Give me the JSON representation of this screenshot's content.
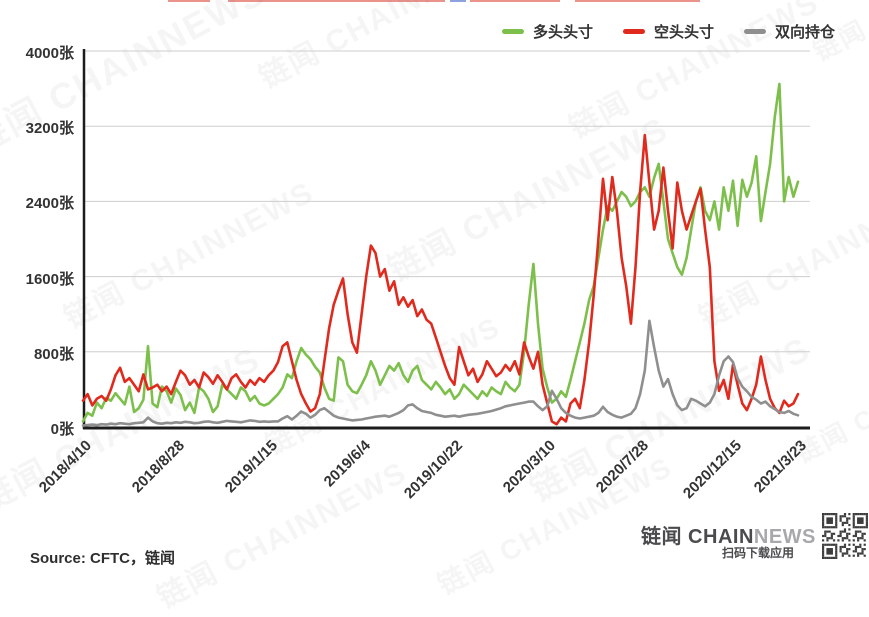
{
  "watermark": {
    "text": "链闻 CHAINNEWS"
  },
  "cutoff_title": {
    "red": "#d93a2b",
    "blue": "#2f55c9"
  },
  "legend": [
    {
      "label": "多头头寸",
      "color": "#7dbf4b"
    },
    {
      "label": "空头头寸",
      "color": "#e02a1e"
    },
    {
      "label": "双向持仓",
      "color": "#8f8f8f"
    }
  ],
  "footer": {
    "source": "Source: CFTC，链闻",
    "brand_primary": "链闻 CHAIN",
    "brand_secondary": "NEWS",
    "qr_caption": "扫码下载应用"
  },
  "chart_data": {
    "type": "line",
    "title": "",
    "xlabel": "",
    "ylabel": "",
    "unit": "张",
    "grid": true,
    "legend_position": "top-right",
    "ylim": [
      0,
      4000
    ],
    "y_ticks": [
      {
        "value": 0,
        "label": "0张"
      },
      {
        "value": 800,
        "label": "800张"
      },
      {
        "value": 1600,
        "label": "1600张"
      },
      {
        "value": 2400,
        "label": "2400张"
      },
      {
        "value": 3200,
        "label": "3200张"
      },
      {
        "value": 4000,
        "label": "4000张"
      }
    ],
    "x_tick_labels": [
      "2018/4/10",
      "2018/8/28",
      "2019/1/15",
      "2019/6/4",
      "2019/10/22",
      "2020/3/10",
      "2020/7/28",
      "2020/12/15",
      "2021/3/23"
    ],
    "x_tick_weeks": [
      0,
      20,
      40,
      60,
      80,
      100,
      120,
      140,
      154
    ],
    "x_is_weekly": true,
    "series": [
      {
        "name": "多头头寸",
        "color": "#7dbf4b",
        "values": [
          60,
          150,
          120,
          260,
          200,
          310,
          280,
          360,
          300,
          240,
          430,
          160,
          200,
          290,
          860,
          250,
          210,
          430,
          380,
          260,
          410,
          340,
          180,
          260,
          150,
          420,
          380,
          300,
          160,
          220,
          450,
          400,
          350,
          300,
          420,
          380,
          280,
          330,
          250,
          230,
          250,
          300,
          350,
          420,
          560,
          520,
          700,
          840,
          770,
          720,
          640,
          580,
          420,
          300,
          280,
          740,
          700,
          450,
          380,
          360,
          450,
          550,
          700,
          600,
          450,
          550,
          650,
          600,
          680,
          550,
          480,
          600,
          650,
          500,
          450,
          400,
          480,
          420,
          350,
          400,
          300,
          350,
          450,
          400,
          350,
          300,
          380,
          330,
          420,
          380,
          350,
          480,
          420,
          380,
          450,
          800,
          1300,
          1735,
          1100,
          620,
          420,
          260,
          300,
          380,
          320,
          500,
          700,
          900,
          1100,
          1350,
          1500,
          1800,
          2100,
          2350,
          2300,
          2400,
          2500,
          2450,
          2350,
          2400,
          2500,
          2550,
          2450,
          2650,
          2800,
          2400,
          2000,
          1850,
          1700,
          1620,
          1800,
          2100,
          2400,
          2550,
          2300,
          2200,
          2400,
          2100,
          2550,
          2300,
          2620,
          2140,
          2630,
          2450,
          2600,
          2880,
          2190,
          2500,
          2800,
          3300,
          3650,
          2400,
          2660,
          2450,
          2610
        ]
      },
      {
        "name": "空头头寸",
        "color": "#e02a1e",
        "values": [
          280,
          350,
          230,
          300,
          330,
          280,
          400,
          550,
          630,
          480,
          520,
          450,
          380,
          560,
          400,
          420,
          450,
          380,
          430,
          350,
          480,
          600,
          550,
          450,
          500,
          420,
          580,
          530,
          460,
          550,
          480,
          400,
          520,
          560,
          480,
          420,
          500,
          450,
          520,
          480,
          550,
          600,
          690,
          860,
          900,
          700,
          500,
          350,
          250,
          165,
          200,
          350,
          700,
          1050,
          1300,
          1450,
          1580,
          1200,
          900,
          790,
          1200,
          1600,
          1930,
          1850,
          1600,
          1680,
          1450,
          1550,
          1300,
          1380,
          1280,
          1350,
          1180,
          1250,
          1140,
          1100,
          950,
          800,
          650,
          520,
          450,
          850,
          700,
          550,
          620,
          480,
          560,
          700,
          620,
          540,
          580,
          660,
          600,
          700,
          560,
          900,
          750,
          620,
          800,
          450,
          250,
          60,
          30,
          100,
          60,
          250,
          300,
          200,
          500,
          900,
          1400,
          2000,
          2640,
          2200,
          2660,
          2300,
          1800,
          1500,
          1100,
          1700,
          2500,
          3105,
          2600,
          2100,
          2300,
          2760,
          2300,
          1900,
          2600,
          2300,
          2100,
          2250,
          2400,
          2535,
          2100,
          1700,
          700,
          385,
          500,
          300,
          665,
          450,
          250,
          180,
          300,
          450,
          750,
          500,
          300,
          200,
          150,
          280,
          220,
          250,
          350
        ]
      },
      {
        "name": "双向持仓",
        "color": "#8f8f8f",
        "values": [
          15,
          20,
          25,
          20,
          30,
          25,
          35,
          30,
          40,
          35,
          30,
          40,
          45,
          50,
          100,
          60,
          40,
          35,
          45,
          40,
          50,
          45,
          55,
          50,
          40,
          45,
          55,
          60,
          50,
          45,
          55,
          65,
          60,
          55,
          50,
          60,
          70,
          65,
          55,
          60,
          55,
          60,
          60,
          90,
          115,
          80,
          120,
          165,
          140,
          100,
          130,
          180,
          200,
          160,
          120,
          100,
          90,
          80,
          70,
          75,
          80,
          90,
          100,
          110,
          115,
          120,
          110,
          130,
          150,
          180,
          230,
          240,
          200,
          170,
          160,
          150,
          130,
          120,
          110,
          115,
          120,
          110,
          120,
          130,
          135,
          140,
          150,
          160,
          170,
          185,
          200,
          220,
          230,
          240,
          250,
          260,
          270,
          270,
          220,
          180,
          220,
          385,
          300,
          200,
          150,
          120,
          100,
          90,
          100,
          110,
          120,
          150,
          215,
          160,
          130,
          110,
          100,
          120,
          140,
          200,
          350,
          600,
          1130,
          850,
          600,
          430,
          510,
          350,
          230,
          180,
          200,
          300,
          280,
          250,
          220,
          260,
          350,
          550,
          700,
          750,
          690,
          520,
          430,
          380,
          320,
          290,
          250,
          270,
          220,
          190,
          160,
          150,
          170,
          140,
          125
        ]
      }
    ]
  }
}
